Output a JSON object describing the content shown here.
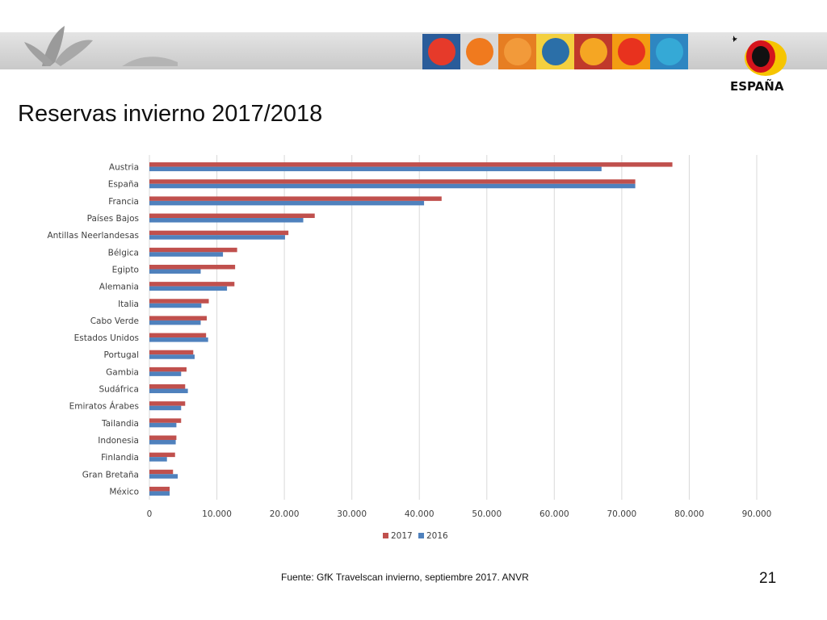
{
  "slide": {
    "title": "Reservas invierno 2017/2018",
    "source": "Fuente: GfK Travelscan invierno, septiembre 2017. ANVR",
    "page_number": "21",
    "logo_text": "ESPAÑA"
  },
  "header": {
    "tile_colors": [
      "#e63a2a",
      "#f07a1e",
      "#f29a3a",
      "#2b6fa8",
      "#f5a623",
      "#e8321e",
      "#35a9d6"
    ]
  },
  "colors": {
    "series_2017": "#c0504d",
    "series_2016": "#4f81bd"
  },
  "chart_data": {
    "type": "bar",
    "orientation": "horizontal",
    "categories": [
      "Austria",
      "España",
      "Francia",
      "Países Bajos",
      "Antillas Neerlandesas",
      "Bélgica",
      "Egipto",
      "Alemania",
      "Italia",
      "Cabo Verde",
      "Estados Unidos",
      "Portugal",
      "Gambia",
      "Sudáfrica",
      "Emiratos Árabes",
      "Tailandia",
      "Indonesia",
      "Finlandia",
      "Gran Bretaña",
      "México"
    ],
    "series": [
      {
        "name": "2017",
        "values": [
          77500,
          72000,
          43300,
          24500,
          20600,
          13000,
          12700,
          12600,
          8800,
          8500,
          8400,
          6500,
          5500,
          5300,
          5300,
          4700,
          4000,
          3800,
          3500,
          3000
        ]
      },
      {
        "name": "2016",
        "values": [
          67000,
          72000,
          40700,
          22800,
          20100,
          10900,
          7600,
          11500,
          7700,
          7600,
          8700,
          6700,
          4700,
          5700,
          4700,
          4000,
          3900,
          2600,
          4200,
          3000
        ]
      }
    ],
    "xlim": [
      0,
      90000
    ],
    "xticks": [
      0,
      10000,
      20000,
      30000,
      40000,
      50000,
      60000,
      70000,
      80000,
      90000
    ],
    "xtick_labels": [
      "0",
      "10.000",
      "20.000",
      "30.000",
      "40.000",
      "50.000",
      "60.000",
      "70.000",
      "80.000",
      "90.000"
    ],
    "grid": "vertical",
    "legend_position": "bottom"
  }
}
